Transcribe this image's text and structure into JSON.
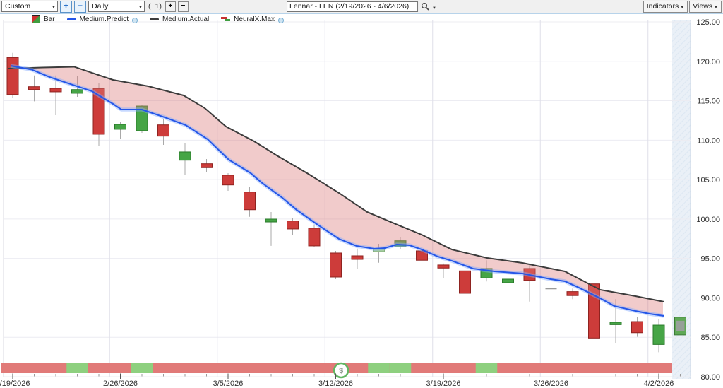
{
  "toolbar": {
    "range_select": {
      "value": "Custom"
    },
    "zoom_in_label": "+",
    "zoom_out_label": "−",
    "interval_select": {
      "value": "Daily"
    },
    "offset_label": "(+1)",
    "bar_add_label": "+",
    "bar_remove_label": "−",
    "symbol_search": {
      "value": "Lennar - LEN (2/19/2026 - 4/6/2026)"
    },
    "indicators_button": "Indicators",
    "views_button": "Views"
  },
  "legend": {
    "items": [
      {
        "label": "Bar"
      },
      {
        "label": "Medium.Predict",
        "color": "#2456e8",
        "dot": true
      },
      {
        "label": "Medium.Actual",
        "color": "#3c3c3c",
        "dot": false
      },
      {
        "label": "NeuralX.Max",
        "dot": true
      }
    ]
  },
  "chart_data": {
    "type": "candlestick",
    "title": "Lennar - LEN (2/19/2026 - 4/6/2026)",
    "symbol": "LEN",
    "ylim": [
      80,
      125
    ],
    "yticks": [
      80,
      85,
      90,
      95,
      100,
      105,
      110,
      115,
      120,
      125
    ],
    "xlabels": [
      "2/19/2026",
      "2/26/2026",
      "3/5/2026",
      "3/12/2026",
      "3/19/2026",
      "3/26/2026",
      "4/2/2026"
    ],
    "xlabel_slots": [
      0,
      5,
      10,
      15,
      20,
      25,
      30
    ],
    "candles": [
      {
        "o": 120.49,
        "h": 121.08,
        "l": 115.35,
        "c": 115.79,
        "k": "r"
      },
      {
        "o": 116.78,
        "h": 118.21,
        "l": 114.93,
        "c": 116.42,
        "k": "r"
      },
      {
        "o": 116.57,
        "h": 118.21,
        "l": 113.17,
        "c": 116.13,
        "k": "r"
      },
      {
        "o": 115.95,
        "h": 118.1,
        "l": 115.5,
        "c": 116.42,
        "k": "g"
      },
      {
        "o": 116.55,
        "h": 117.2,
        "l": 109.31,
        "c": 110.75,
        "k": "r"
      },
      {
        "o": 111.38,
        "h": 112.36,
        "l": 110.12,
        "c": 112.0,
        "k": "g"
      },
      {
        "o": 111.2,
        "h": 114.51,
        "l": 110.93,
        "c": 114.33,
        "k": "g"
      },
      {
        "o": 111.94,
        "h": 112.72,
        "l": 109.4,
        "c": 110.51,
        "k": "r"
      },
      {
        "o": 107.46,
        "h": 109.58,
        "l": 105.55,
        "c": 108.51,
        "k": "g"
      },
      {
        "o": 107.01,
        "h": 107.61,
        "l": 106.0,
        "c": 106.51,
        "k": "r"
      },
      {
        "o": 105.55,
        "h": 105.82,
        "l": 103.58,
        "c": 104.32,
        "k": "r"
      },
      {
        "o": 103.42,
        "h": 104.02,
        "l": 100.28,
        "c": 101.18,
        "k": "r"
      },
      {
        "o": 99.63,
        "h": 100.89,
        "l": 96.59,
        "c": 99.99,
        "k": "g"
      },
      {
        "o": 99.75,
        "h": 100.17,
        "l": 97.93,
        "c": 98.74,
        "k": "r"
      },
      {
        "o": 98.83,
        "h": 99.28,
        "l": 96.41,
        "c": 96.59,
        "k": "r"
      },
      {
        "o": 95.69,
        "h": 95.96,
        "l": 92.37,
        "c": 92.64,
        "k": "r"
      },
      {
        "o": 95.33,
        "h": 96.25,
        "l": 93.72,
        "c": 94.88,
        "k": "r"
      },
      {
        "o": 95.87,
        "h": 96.85,
        "l": 94.46,
        "c": 96.16,
        "k": "gf"
      },
      {
        "o": 96.56,
        "h": 97.75,
        "l": 96.14,
        "c": 97.24,
        "k": "g"
      },
      {
        "o": 95.96,
        "h": 97.46,
        "l": 94.46,
        "c": 94.77,
        "k": "r"
      },
      {
        "o": 94.17,
        "h": 94.37,
        "l": 92.52,
        "c": 93.78,
        "k": "r"
      },
      {
        "o": 93.42,
        "h": 93.72,
        "l": 89.53,
        "c": 90.58,
        "k": "r"
      },
      {
        "o": 92.53,
        "h": 94.77,
        "l": 92.08,
        "c": 93.72,
        "k": "g"
      },
      {
        "o": 91.92,
        "h": 92.82,
        "l": 91.47,
        "c": 92.37,
        "k": "g"
      },
      {
        "o": 93.72,
        "h": 94.17,
        "l": 89.53,
        "c": 92.22,
        "k": "r"
      },
      {
        "o": 91.18,
        "h": 92.37,
        "l": 90.43,
        "c": 91.18,
        "k": "d"
      },
      {
        "o": 90.79,
        "h": 91.18,
        "l": 89.84,
        "c": 90.29,
        "k": "r"
      },
      {
        "o": 91.77,
        "h": 91.93,
        "l": 84.75,
        "c": 84.9,
        "k": "r"
      },
      {
        "o": 86.6,
        "h": 89.84,
        "l": 84.3,
        "c": 86.9,
        "k": "g"
      },
      {
        "o": 86.99,
        "h": 87.59,
        "l": 85.05,
        "c": 85.58,
        "k": "r"
      },
      {
        "o": 84.09,
        "h": 87.28,
        "l": 83.1,
        "c": 86.54,
        "k": "g"
      }
    ],
    "series": [
      {
        "name": "Medium.Predict",
        "color": "#2456e8",
        "points": [
          [
            15,
            119.44
          ],
          [
            45,
            118.95
          ],
          [
            70,
            118.01
          ],
          [
            100,
            117.11
          ],
          [
            130,
            116.22
          ],
          [
            160,
            114.6
          ],
          [
            172,
            113.88
          ],
          [
            201,
            113.88
          ],
          [
            233,
            112.9
          ],
          [
            263,
            111.91
          ],
          [
            294,
            110.12
          ],
          [
            324,
            107.52
          ],
          [
            355,
            105.82
          ],
          [
            370,
            104.65
          ],
          [
            400,
            102.68
          ],
          [
            420,
            101.16
          ],
          [
            450,
            99.27
          ],
          [
            480,
            97.48
          ],
          [
            505,
            96.58
          ],
          [
            530,
            96.23
          ],
          [
            545,
            96.31
          ],
          [
            562,
            96.76
          ],
          [
            580,
            96.67
          ],
          [
            597,
            96.14
          ],
          [
            620,
            95.24
          ],
          [
            640,
            94.7
          ],
          [
            670,
            93.71
          ],
          [
            700,
            93.36
          ],
          [
            740,
            93.09
          ],
          [
            780,
            92.37
          ],
          [
            800,
            92.1
          ],
          [
            820,
            91.29
          ],
          [
            850,
            89.95
          ],
          [
            870,
            88.96
          ],
          [
            900,
            88.34
          ],
          [
            920,
            87.98
          ],
          [
            940,
            87.71
          ]
        ]
      },
      {
        "name": "Medium.Actual",
        "color": "#3c3c3c",
        "points": [
          [
            12,
            119.08
          ],
          [
            60,
            119.22
          ],
          [
            105,
            119.31
          ],
          [
            160,
            117.65
          ],
          [
            210,
            116.84
          ],
          [
            260,
            115.68
          ],
          [
            290,
            114.06
          ],
          [
            320,
            111.73
          ],
          [
            360,
            109.85
          ],
          [
            392,
            108.06
          ],
          [
            435,
            105.82
          ],
          [
            480,
            103.31
          ],
          [
            520,
            100.89
          ],
          [
            563,
            99.27
          ],
          [
            597,
            98.02
          ],
          [
            640,
            96.13
          ],
          [
            690,
            95.06
          ],
          [
            740,
            94.43
          ],
          [
            800,
            93.36
          ],
          [
            850,
            91.03
          ],
          [
            900,
            90.22
          ],
          [
            940,
            89.51
          ]
        ]
      }
    ],
    "band": {
      "name": "NeuralX.Max",
      "above_fill": "rgba(221,126,126,0.40)",
      "below_fill": "rgba(115,185,115,0.45)"
    },
    "signal_strip": {
      "red": "#e17a78",
      "green": "#8ed07f",
      "green_slots": [
        3,
        6,
        17,
        18,
        22
      ]
    },
    "prediction_bar": {
      "high": 87.55,
      "low": 85.3,
      "inner_high": 87.1,
      "inner_low": 85.75,
      "fill": "#5fa855",
      "stroke": "#3d7a36",
      "inner_fill": "#97a099"
    },
    "marker": {
      "glyph": "$",
      "x_slot": 15.25,
      "ring": "#63b663",
      "text": "#8f9b8f"
    },
    "colors": {
      "candle_red": "#cd3c3a",
      "candle_red_stroke": "#8f2320",
      "candle_green": "#46a546",
      "candle_green_stroke": "#2a7a2a",
      "candle_faded_green": "#a5cd9e",
      "candle_faded_stroke": "#85b07e",
      "doji_gray": "#9a9a9a",
      "wick": "#a9a9a9",
      "grid_h": "#ececf2",
      "grid_v": "#dfdfe9",
      "future_zone": "#eaf0f7",
      "future_hatch": "#dce7f2",
      "axis_text": "#333333",
      "predict_glow": "rgba(130,170,255,0.45)"
    },
    "layout": {
      "plot_left": 5,
      "plot_right": 952,
      "plot_top": 28,
      "price_top_y": 31,
      "price_bottom_y": 533,
      "slot_width": 30.5,
      "first_slot_x": 18,
      "future_zone_right": 978,
      "strip_top": 514,
      "strip_bottom": 528,
      "label_y": 546,
      "ylabel_x": 1020
    }
  }
}
